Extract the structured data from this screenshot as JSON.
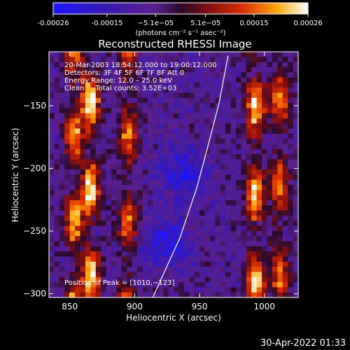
{
  "chart_data": {
    "type": "heatmap",
    "title": "Reconstructed RHESSI Image",
    "xlabel": "Heliocentric X (arcsec)",
    "ylabel": "Heliocentric Y (arcsec)",
    "xlim": [
      834,
      1026
    ],
    "ylim": [
      -303,
      -107
    ],
    "xticks": [
      850,
      900,
      950,
      1000
    ],
    "yticks": [
      -150,
      -200,
      -250,
      -300
    ],
    "colorbar": {
      "min": -0.00026,
      "max": 0.00026,
      "ticks": [
        "-0.00026",
        "-0.00015",
        "−5.1e−05",
        "5.1e−05",
        "0.00015",
        "0.00026"
      ],
      "tick_values": [
        -0.00026,
        -0.00015,
        -5.1e-05,
        5.1e-05,
        0.00015,
        0.00026
      ],
      "unit_label": "(photons cm⁻² s⁻¹ asec⁻²)"
    },
    "annotations": [
      "20-Mar-2003 18:54:12.000 to 19:00:12.000",
      "Detectors: 3F 4F 5F 6F 7F 8F Att 0",
      "Energy Range: 12.0 – 25.0 keV",
      "Clean     Total counts: 3.52E+03"
    ],
    "peak_label": "Position of Peak = [1010,−123]",
    "peak": [
      1010,
      -123
    ],
    "limb_curve": [
      [
        914,
        -303
      ],
      [
        935,
        -255
      ],
      [
        948,
        -215
      ],
      [
        957,
        -180
      ],
      [
        965,
        -148
      ],
      [
        972,
        -110
      ]
    ],
    "hot_columns": [
      {
        "x": 853,
        "strength": 0.8
      },
      {
        "x": 866,
        "strength": 1.0
      },
      {
        "x": 895,
        "strength": 0.75
      },
      {
        "x": 993,
        "strength": 0.95
      },
      {
        "x": 1012,
        "strength": 0.7
      }
    ],
    "cool_regions": [
      {
        "x": 937,
        "y": -205
      },
      {
        "x": 925,
        "y": -260
      }
    ]
  },
  "timestamp": "30-Apr-2022 01:33"
}
